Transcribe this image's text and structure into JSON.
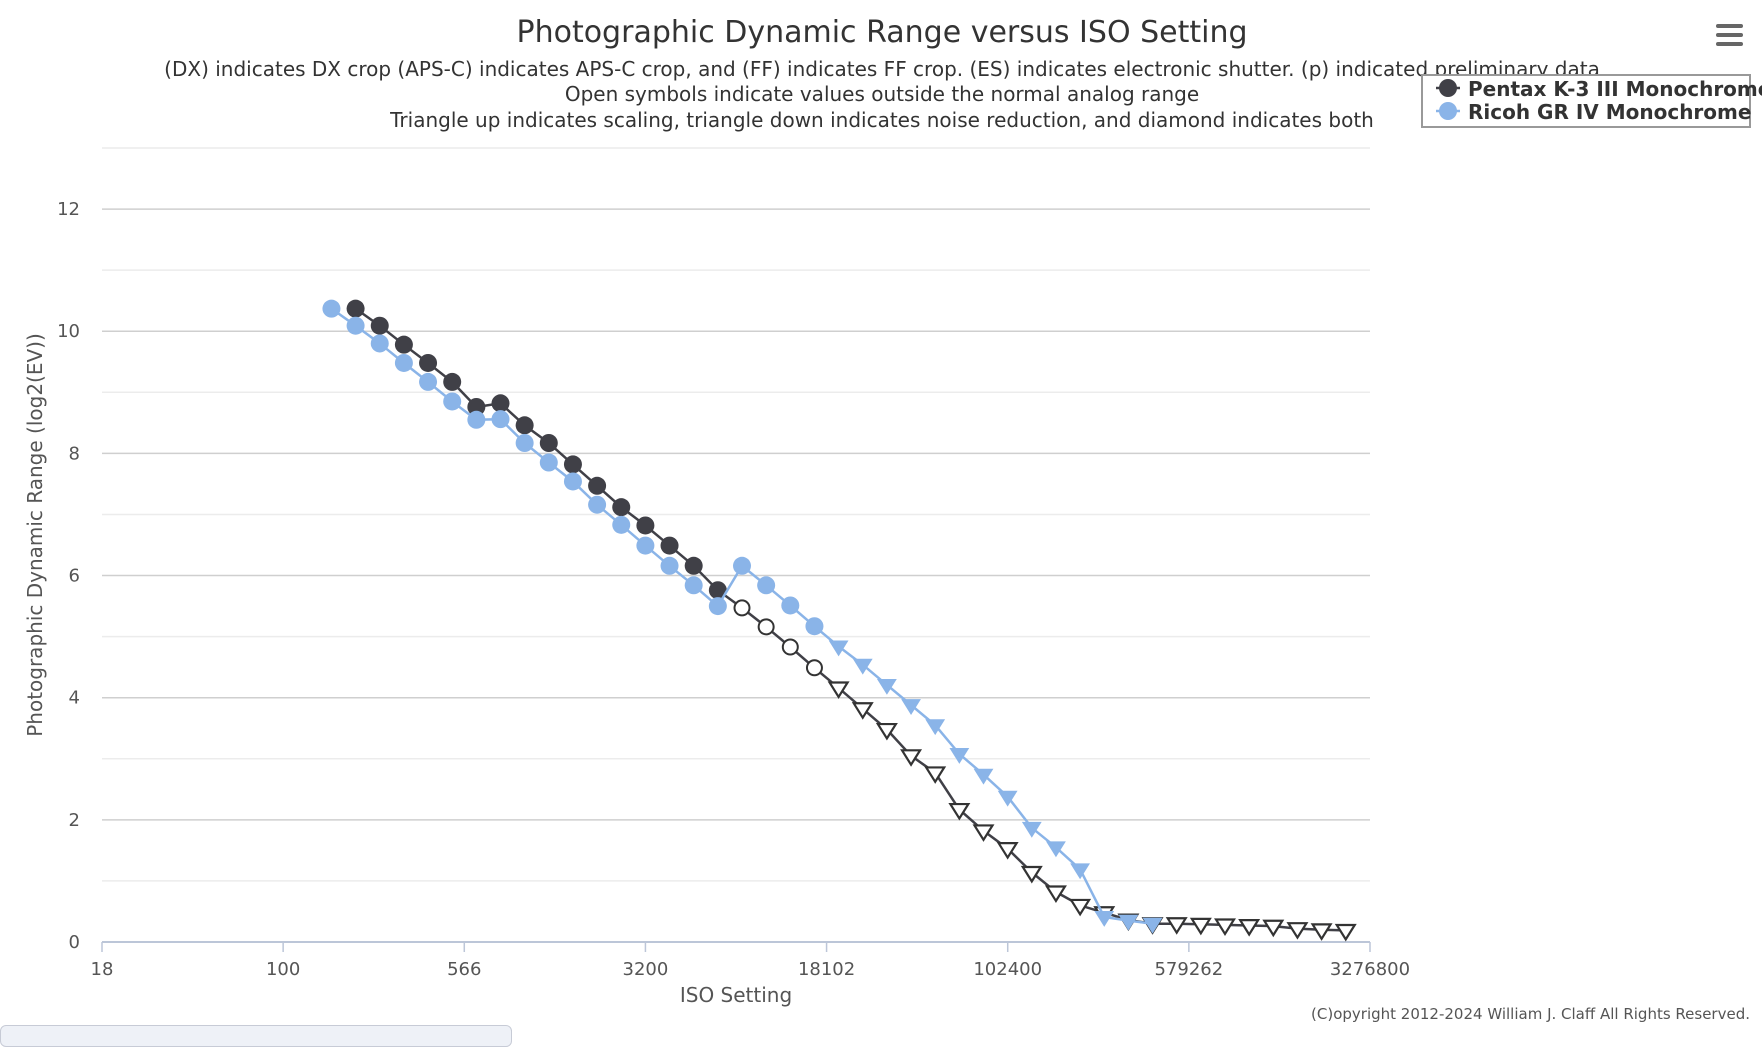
{
  "page": {
    "credits": "(C)opyright 2012-2024 William J. Claff All Rights Reserved.",
    "menu_icon": "hamburger-menu-icon"
  },
  "chart_data": {
    "type": "line",
    "title": "Photographic Dynamic Range versus ISO Setting",
    "subtitle_lines": [
      "(DX) indicates DX crop (APS-C) indicates APS-C crop, and (FF) indicates FF crop. (ES) indicates electronic shutter. (p) indicated preliminary data",
      "Open symbols indicate values outside the normal analog range",
      "Triangle up indicates scaling, triangle down indicates noise reduction, and diamond indicates both"
    ],
    "xlabel": "ISO Setting",
    "ylabel": "Photographic Dynamic Range (log2(EV))",
    "x_scale": "log2",
    "x_range_stops": [
      0,
      17.5
    ],
    "xticks": [
      {
        "stop": 0,
        "label": "18"
      },
      {
        "stop": 2.5,
        "label": "100"
      },
      {
        "stop": 5,
        "label": "566"
      },
      {
        "stop": 7.5,
        "label": "3200"
      },
      {
        "stop": 10,
        "label": "18102"
      },
      {
        "stop": 12.5,
        "label": "102400"
      },
      {
        "stop": 15,
        "label": "579262"
      },
      {
        "stop": 17.5,
        "label": "3276800"
      }
    ],
    "ylim": [
      0,
      13
    ],
    "yticks": [
      0,
      2,
      4,
      6,
      8,
      10,
      12
    ],
    "grid": true,
    "legend_position": "top-right",
    "series": [
      {
        "name": "Pentax K-3 III Monochrome",
        "color": "#404047",
        "start_stop": 3.5,
        "step_stops": 0.3333,
        "values": [
          10.37,
          10.09,
          9.78,
          9.48,
          9.17,
          8.76,
          8.82,
          8.46,
          8.17,
          7.82,
          7.47,
          7.12,
          6.82,
          6.49,
          6.16,
          5.76,
          5.47,
          5.16,
          4.83,
          4.49,
          4.16,
          3.82,
          3.48,
          3.05,
          2.77,
          2.17,
          1.82,
          1.53,
          1.14,
          0.82,
          0.6,
          0.48,
          0.36,
          0.3,
          0.3,
          0.29,
          0.28,
          0.27,
          0.26,
          0.22,
          0.2,
          0.19
        ],
        "markers": [
          "filled-circle",
          "filled-circle",
          "filled-circle",
          "filled-circle",
          "filled-circle",
          "filled-circle",
          "filled-circle",
          "filled-circle",
          "filled-circle",
          "filled-circle",
          "filled-circle",
          "filled-circle",
          "filled-circle",
          "filled-circle",
          "filled-circle",
          "filled-circle",
          "open-circle",
          "open-circle",
          "open-circle",
          "open-circle",
          "open-triangle-down",
          "open-triangle-down",
          "open-triangle-down",
          "open-triangle-down",
          "open-triangle-down",
          "open-triangle-down",
          "open-triangle-down",
          "open-triangle-down",
          "open-triangle-down",
          "open-triangle-down",
          "open-triangle-down",
          "open-triangle-down",
          "open-triangle-down",
          "open-triangle-down",
          "open-triangle-down",
          "open-triangle-down",
          "open-triangle-down",
          "open-triangle-down",
          "open-triangle-down",
          "open-triangle-down",
          "open-triangle-down",
          "open-triangle-down"
        ]
      },
      {
        "name": "Ricoh GR IV Monochrome",
        "color": "#8ab4e8",
        "start_stop": 3.1667,
        "step_stops": 0.3333,
        "values": [
          10.37,
          10.09,
          9.8,
          9.48,
          9.17,
          8.85,
          8.55,
          8.56,
          8.17,
          7.85,
          7.54,
          7.16,
          6.83,
          6.49,
          6.16,
          5.84,
          5.5,
          6.16,
          5.84,
          5.51,
          5.17,
          4.84,
          4.54,
          4.21,
          3.88,
          3.55,
          3.08,
          2.74,
          2.38,
          1.87,
          1.55,
          1.19,
          0.41,
          0.35,
          0.3
        ],
        "markers": [
          "filled-circle",
          "filled-circle",
          "filled-circle",
          "filled-circle",
          "filled-circle",
          "filled-circle",
          "filled-circle",
          "filled-circle",
          "filled-circle",
          "filled-circle",
          "filled-circle",
          "filled-circle",
          "filled-circle",
          "filled-circle",
          "filled-circle",
          "filled-circle",
          "filled-circle",
          "filled-circle",
          "filled-circle",
          "filled-circle",
          "filled-circle",
          "filled-triangle-down",
          "filled-triangle-down",
          "filled-triangle-down",
          "filled-triangle-down",
          "filled-triangle-down",
          "filled-triangle-down",
          "filled-triangle-down",
          "filled-triangle-down",
          "filled-triangle-down",
          "filled-triangle-down",
          "filled-triangle-down",
          "filled-triangle-down",
          "filled-triangle-down",
          "filled-triangle-down"
        ]
      }
    ]
  }
}
